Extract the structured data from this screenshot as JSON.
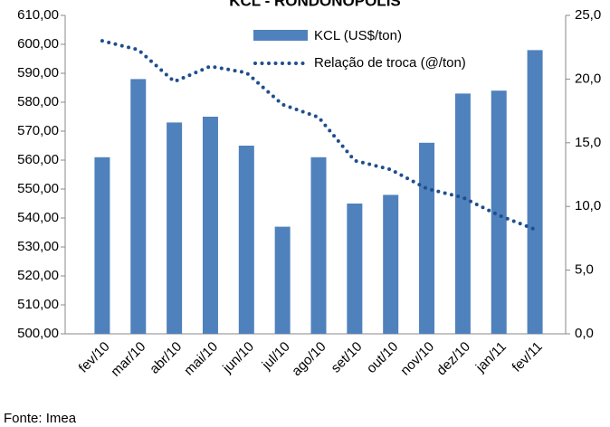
{
  "chart_data": {
    "type": "bar_line",
    "title": "KCL - RONDONÓPOLIS",
    "categories": [
      "fev/10",
      "mar/10",
      "abr/10",
      "mai/10",
      "jun/10",
      "jul/10",
      "ago/10",
      "set/10",
      "out/10",
      "nov/10",
      "dez/10",
      "jan/11",
      "fev/11"
    ],
    "series": [
      {
        "name": "KCL (US$/ton)",
        "color": "#4f81bd",
        "values": [
          561,
          588,
          573,
          575,
          565,
          537,
          561,
          545,
          548,
          566,
          583,
          584,
          598
        ]
      },
      {
        "name": "Relação de troca (@/ton)",
        "color": "#1f4e8c",
        "axis": "y2",
        "values": [
          23.0,
          22.3,
          19.8,
          21.0,
          20.5,
          18.0,
          17.0,
          13.6,
          12.9,
          11.4,
          10.7,
          9.3,
          8.2
        ]
      }
    ],
    "ylim": [
      500,
      610
    ],
    "yticks": [
      {
        "value": 500,
        "label": "500,00"
      },
      {
        "value": 510,
        "label": "510,00"
      },
      {
        "value": 520,
        "label": "520,00"
      },
      {
        "value": 530,
        "label": "530,00"
      },
      {
        "value": 540,
        "label": "540,00"
      },
      {
        "value": 550,
        "label": "550,00"
      },
      {
        "value": 560,
        "label": "560,00"
      },
      {
        "value": 570,
        "label": "570,00"
      },
      {
        "value": 580,
        "label": "580,00"
      },
      {
        "value": 590,
        "label": "590,00"
      },
      {
        "value": 600,
        "label": "600,00"
      },
      {
        "value": 610,
        "label": "610,00"
      }
    ],
    "y2lim": [
      0,
      25
    ],
    "y2ticks": [
      {
        "value": 0,
        "label": "0,0"
      },
      {
        "value": 5,
        "label": "5,0"
      },
      {
        "value": 10,
        "label": "10,0"
      },
      {
        "value": 15,
        "label": "15,0"
      },
      {
        "value": 20,
        "label": "20,0"
      },
      {
        "value": 25,
        "label": "25,0"
      }
    ],
    "source": "Fonte: Imea"
  }
}
